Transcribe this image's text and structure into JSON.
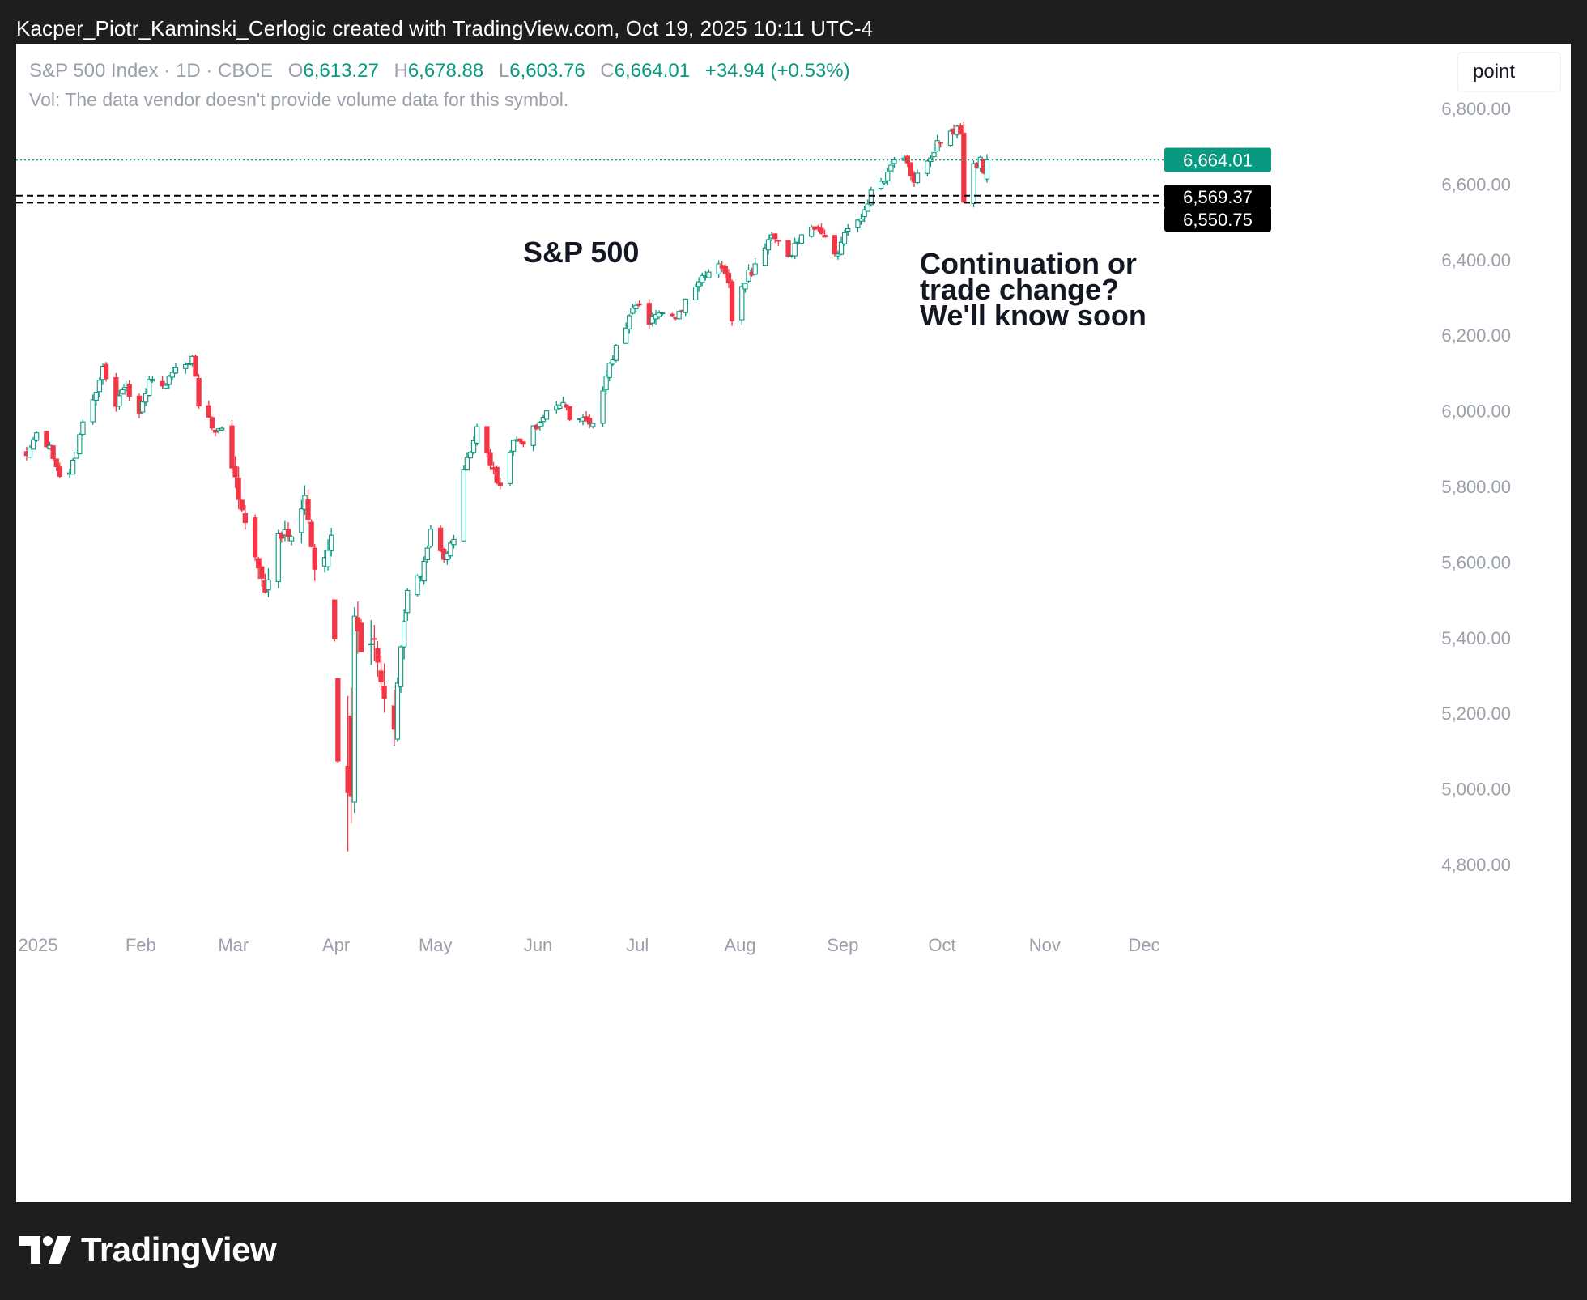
{
  "caption": "Kacper_Piotr_Kaminski_Cerlogic created with TradingView.com, Oct 19, 2025 10:11 UTC-4",
  "legend": {
    "symbol": "S&P 500 Index · 1D · CBOE",
    "open_label": "O",
    "open": "6,613.27",
    "high_label": "H",
    "high": "6,678.88",
    "low_label": "L",
    "low": "6,603.76",
    "close_label": "C",
    "close": "6,664.01",
    "change": "+34.94 (+0.53%)"
  },
  "volume_note": "Vol: The data vendor doesn't provide volume data for this symbol.",
  "scale_button": "point",
  "brand": "TradingView",
  "colors": {
    "up": "#089981",
    "down": "#f23645",
    "grid_text": "#9aa0ab",
    "axis_text": "#9aa0ab",
    "badge_dark": "#000000",
    "last_price": "#089981"
  },
  "chart_data": {
    "type": "candlestick",
    "yticks": [
      4800,
      5000,
      5200,
      5400,
      5600,
      5800,
      6000,
      6200,
      6400,
      6600,
      6800
    ],
    "ytick_labels": [
      "4,800.00",
      "5,000.00",
      "5,200.00",
      "5,400.00",
      "5,600.00",
      "5,800.00",
      "6,000.00",
      "6,200.00",
      "6,400.00",
      "6,600.00",
      "6,800.00"
    ],
    "xticks": [
      {
        "date": "2025-01-01",
        "label": "2025"
      },
      {
        "date": "2025-02-01",
        "label": "Feb"
      },
      {
        "date": "2025-03-01",
        "label": "Mar"
      },
      {
        "date": "2025-04-01",
        "label": "Apr"
      },
      {
        "date": "2025-05-01",
        "label": "May"
      },
      {
        "date": "2025-06-01",
        "label": "Jun"
      },
      {
        "date": "2025-07-01",
        "label": "Jul"
      },
      {
        "date": "2025-08-01",
        "label": "Aug"
      },
      {
        "date": "2025-09-01",
        "label": "Sep"
      },
      {
        "date": "2025-10-01",
        "label": "Oct"
      },
      {
        "date": "2025-11-01",
        "label": "Nov"
      },
      {
        "date": "2025-12-01",
        "label": "Dec"
      }
    ],
    "last_price": {
      "value": 6664.01,
      "label": "6,664.01"
    },
    "horizontal_lines": [
      {
        "value": 6569.37,
        "label": "6,569.37"
      },
      {
        "value": 6550.75,
        "label": "6,550.75"
      }
    ],
    "annotations": [
      {
        "text": "S&P 500",
        "date": "2025-05-29",
        "value": 6415
      },
      {
        "text": "Continuation or\ntrade change?\nWe'll know soon",
        "date": "2025-10-18",
        "value": 6420
      }
    ],
    "anchors": [
      {
        "date": "2024-12-31",
        "close": 5882
      },
      {
        "date": "2025-01-03",
        "close": 5942
      },
      {
        "date": "2025-01-07",
        "close": 5909
      },
      {
        "date": "2025-01-10",
        "close": 5827
      },
      {
        "date": "2025-01-13",
        "close": 5836
      },
      {
        "date": "2025-01-16",
        "close": 5937
      },
      {
        "date": "2025-01-21",
        "close": 6049
      },
      {
        "date": "2025-01-23",
        "close": 6118
      },
      {
        "date": "2025-01-27",
        "close": 6012
      },
      {
        "date": "2025-01-30",
        "close": 6071
      },
      {
        "date": "2025-02-03",
        "close": 5994
      },
      {
        "date": "2025-02-06",
        "close": 6083
      },
      {
        "date": "2025-02-10",
        "close": 6066
      },
      {
        "date": "2025-02-14",
        "close": 6114
      },
      {
        "date": "2025-02-19",
        "close": 6144
      },
      {
        "date": "2025-02-21",
        "close": 6013
      },
      {
        "date": "2025-02-25",
        "close": 5955
      },
      {
        "date": "2025-02-28",
        "close": 5954
      },
      {
        "date": "2025-03-03",
        "close": 5849
      },
      {
        "date": "2025-03-06",
        "close": 5738
      },
      {
        "date": "2025-03-10",
        "close": 5614
      },
      {
        "date": "2025-03-13",
        "close": 5521
      },
      {
        "date": "2025-03-17",
        "close": 5675
      },
      {
        "date": "2025-03-21",
        "close": 5667
      },
      {
        "date": "2025-03-25",
        "close": 5776
      },
      {
        "date": "2025-03-28",
        "close": 5581
      },
      {
        "date": "2025-03-31",
        "close": 5612
      },
      {
        "date": "2025-04-02",
        "close": 5671
      },
      {
        "date": "2025-04-03",
        "close": 5397
      },
      {
        "date": "2025-04-04",
        "close": 5074
      },
      {
        "date": "2025-04-07",
        "close": 5062
      },
      {
        "date": "2025-04-08",
        "close": 4982
      },
      {
        "date": "2025-04-09",
        "close": 5457
      },
      {
        "date": "2025-04-11",
        "close": 5363
      },
      {
        "date": "2025-04-15",
        "close": 5397
      },
      {
        "date": "2025-04-17",
        "close": 5283
      },
      {
        "date": "2025-04-21",
        "close": 5158
      },
      {
        "date": "2025-04-23",
        "close": 5376
      },
      {
        "date": "2025-04-25",
        "close": 5525
      },
      {
        "date": "2025-04-29",
        "close": 5561
      },
      {
        "date": "2025-05-02",
        "close": 5687
      },
      {
        "date": "2025-05-06",
        "close": 5607
      },
      {
        "date": "2025-05-09",
        "close": 5660
      },
      {
        "date": "2025-05-12",
        "close": 5844
      },
      {
        "date": "2025-05-16",
        "close": 5958
      },
      {
        "date": "2025-05-21",
        "close": 5845
      },
      {
        "date": "2025-05-23",
        "close": 5803
      },
      {
        "date": "2025-05-27",
        "close": 5922
      },
      {
        "date": "2025-05-30",
        "close": 5912
      },
      {
        "date": "2025-06-04",
        "close": 5970
      },
      {
        "date": "2025-06-06",
        "close": 6000
      },
      {
        "date": "2025-06-11",
        "close": 6022
      },
      {
        "date": "2025-06-13",
        "close": 5977
      },
      {
        "date": "2025-06-17",
        "close": 5982
      },
      {
        "date": "2025-06-20",
        "close": 5967
      },
      {
        "date": "2025-06-24",
        "close": 6092
      },
      {
        "date": "2025-06-27",
        "close": 6173
      },
      {
        "date": "2025-07-03",
        "close": 6279
      },
      {
        "date": "2025-07-07",
        "close": 6229
      },
      {
        "date": "2025-07-11",
        "close": 6259
      },
      {
        "date": "2025-07-15",
        "close": 6244
      },
      {
        "date": "2025-07-18",
        "close": 6296
      },
      {
        "date": "2025-07-23",
        "close": 6358
      },
      {
        "date": "2025-07-28",
        "close": 6389
      },
      {
        "date": "2025-07-31",
        "close": 6339
      },
      {
        "date": "2025-08-01",
        "close": 6238
      },
      {
        "date": "2025-08-04",
        "close": 6329
      },
      {
        "date": "2025-08-08",
        "close": 6389
      },
      {
        "date": "2025-08-13",
        "close": 6466
      },
      {
        "date": "2025-08-15",
        "close": 6449
      },
      {
        "date": "2025-08-19",
        "close": 6411
      },
      {
        "date": "2025-08-22",
        "close": 6466
      },
      {
        "date": "2025-08-27",
        "close": 6481
      },
      {
        "date": "2025-08-29",
        "close": 6460
      },
      {
        "date": "2025-09-02",
        "close": 6415
      },
      {
        "date": "2025-09-05",
        "close": 6482
      },
      {
        "date": "2025-09-10",
        "close": 6532
      },
      {
        "date": "2025-09-12",
        "close": 6584
      },
      {
        "date": "2025-09-16",
        "close": 6607
      },
      {
        "date": "2025-09-19",
        "close": 6664
      },
      {
        "date": "2025-09-23",
        "close": 6656
      },
      {
        "date": "2025-09-25",
        "close": 6605
      },
      {
        "date": "2025-09-29",
        "close": 6661
      },
      {
        "date": "2025-10-02",
        "close": 6715
      },
      {
        "date": "2025-10-06",
        "close": 6740
      },
      {
        "date": "2025-10-08",
        "close": 6753
      },
      {
        "date": "2025-10-09",
        "close": 6735
      },
      {
        "date": "2025-10-10",
        "close": 6552
      },
      {
        "date": "2025-10-13",
        "close": 6654
      },
      {
        "date": "2025-10-14",
        "close": 6644
      },
      {
        "date": "2025-10-15",
        "close": 6671
      },
      {
        "date": "2025-10-16",
        "close": 6629
      },
      {
        "date": "2025-10-17",
        "close": 6664
      }
    ]
  }
}
